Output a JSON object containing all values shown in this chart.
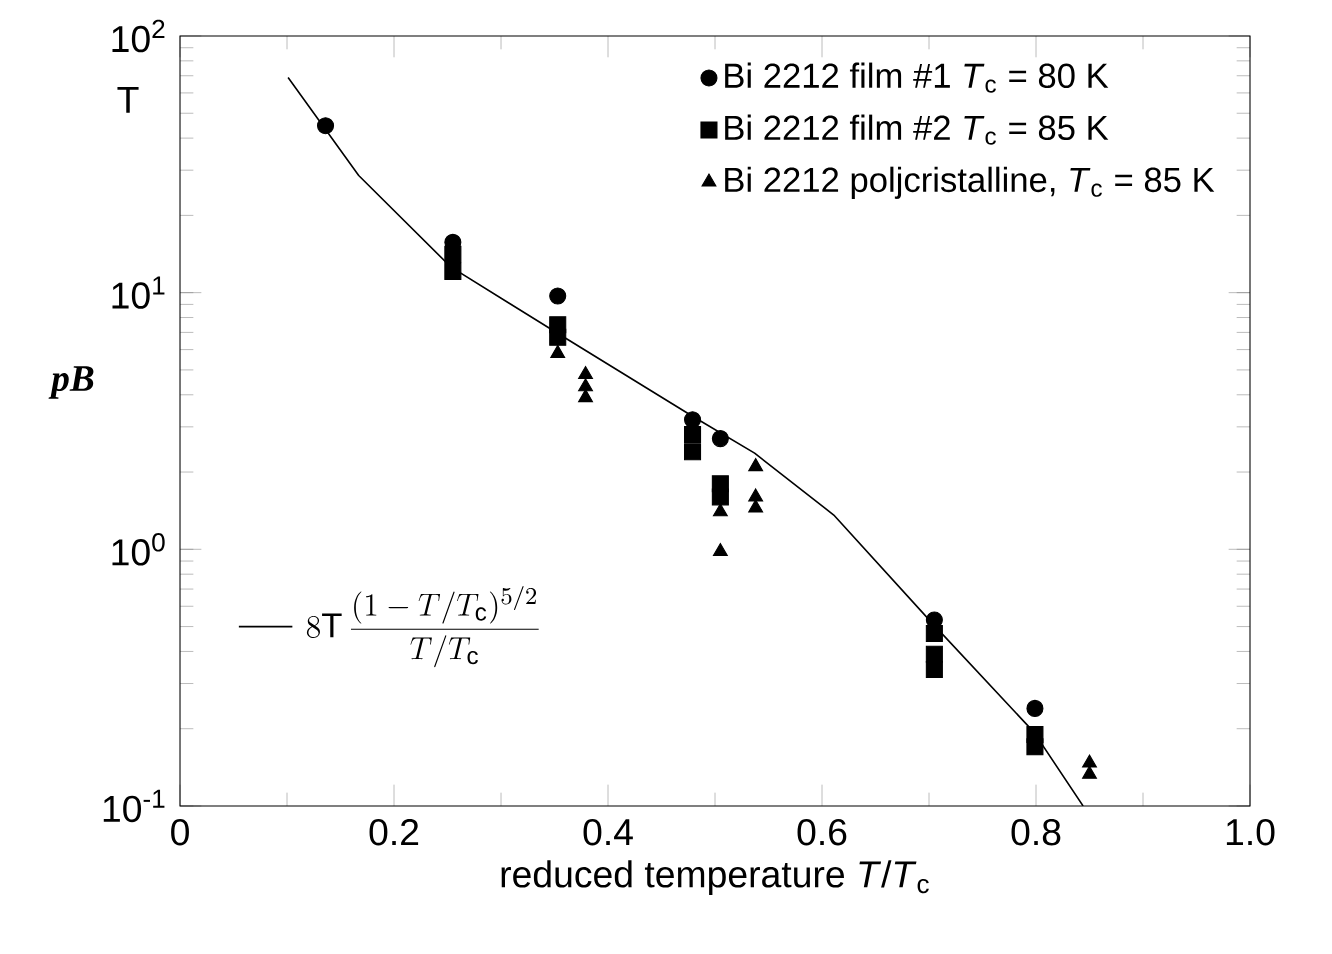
{
  "chart_data": {
    "type": "scatter",
    "xlabel": "reduced temperature *T*/*T*$_{c}$",
    "ylabel": "pB",
    "annotations": [
      "T"
    ],
    "log": "y",
    "xlim": [
      0,
      1
    ],
    "ylim": [
      0.1,
      100
    ],
    "xticks": [
      0,
      0.2,
      0.4,
      0.6,
      0.8,
      {
        "value": 1,
        "label": "1.0"
      }
    ],
    "yticks": [
      {
        "value": 0.1,
        "label": "10$^{-1}$"
      },
      {
        "value": 1,
        "label": "10$^{0}$"
      },
      {
        "value": 10,
        "label": "10$^{1}$"
      },
      {
        "value": 100,
        "label": "10$^{2}$"
      }
    ],
    "legend": "top right",
    "series": [
      {
        "name": "Bi 2212 film #1  *T*$_{c}$ = 80 K",
        "color": "#000000",
        "marker": "circle",
        "x": [
          0.136,
          0.255,
          0.353,
          0.479,
          0.505,
          0.705,
          0.799
        ],
        "values": [
          44.7,
          15.7,
          9.7,
          3.2,
          2.7,
          0.53,
          0.24
        ]
      },
      {
        "name": "Bi 2212 film #2  *T*$_{c}$ = 85 K",
        "color": "#000000",
        "marker": "square",
        "x": [
          0.255,
          0.255,
          0.353,
          0.353,
          0.479,
          0.479,
          0.505,
          0.505,
          0.705,
          0.705,
          0.705,
          0.799,
          0.799
        ],
        "values": [
          14.1,
          12.1,
          7.5,
          6.7,
          2.8,
          2.4,
          1.8,
          1.6,
          0.47,
          0.39,
          0.34,
          0.19,
          0.17
        ]
      },
      {
        "name": "Bi 2212 poljcristalline, *T*$_{c}$ = 85 K",
        "color": "#000000",
        "marker": "triangle",
        "x": [
          0.353,
          0.379,
          0.379,
          0.379,
          0.505,
          0.505,
          0.538,
          0.538,
          0.538,
          0.85,
          0.85
        ],
        "values": [
          5.8,
          4.8,
          4.3,
          3.9,
          1.4,
          0.98,
          2.1,
          1.6,
          1.45,
          0.147,
          0.133
        ]
      },
      {
        "type": "line",
        "name": "8\\mathrm{T}\\,\\frac{(1-T/T_{\\mathrm{c}})^{5/2}}{T/T_{\\mathrm{c}}}",
        "color": "#000000",
        "line_style": "solid",
        "marker": "none",
        "x": [
          0.101,
          0.167,
          0.253,
          0.354,
          0.479,
          0.537,
          0.611,
          0.704,
          0.798,
          0.844
        ],
        "values": [
          68.9,
          28.6,
          12.6,
          6.9,
          3.3,
          2.37,
          1.36,
          0.51,
          0.194,
          0.1
        ]
      }
    ]
  }
}
